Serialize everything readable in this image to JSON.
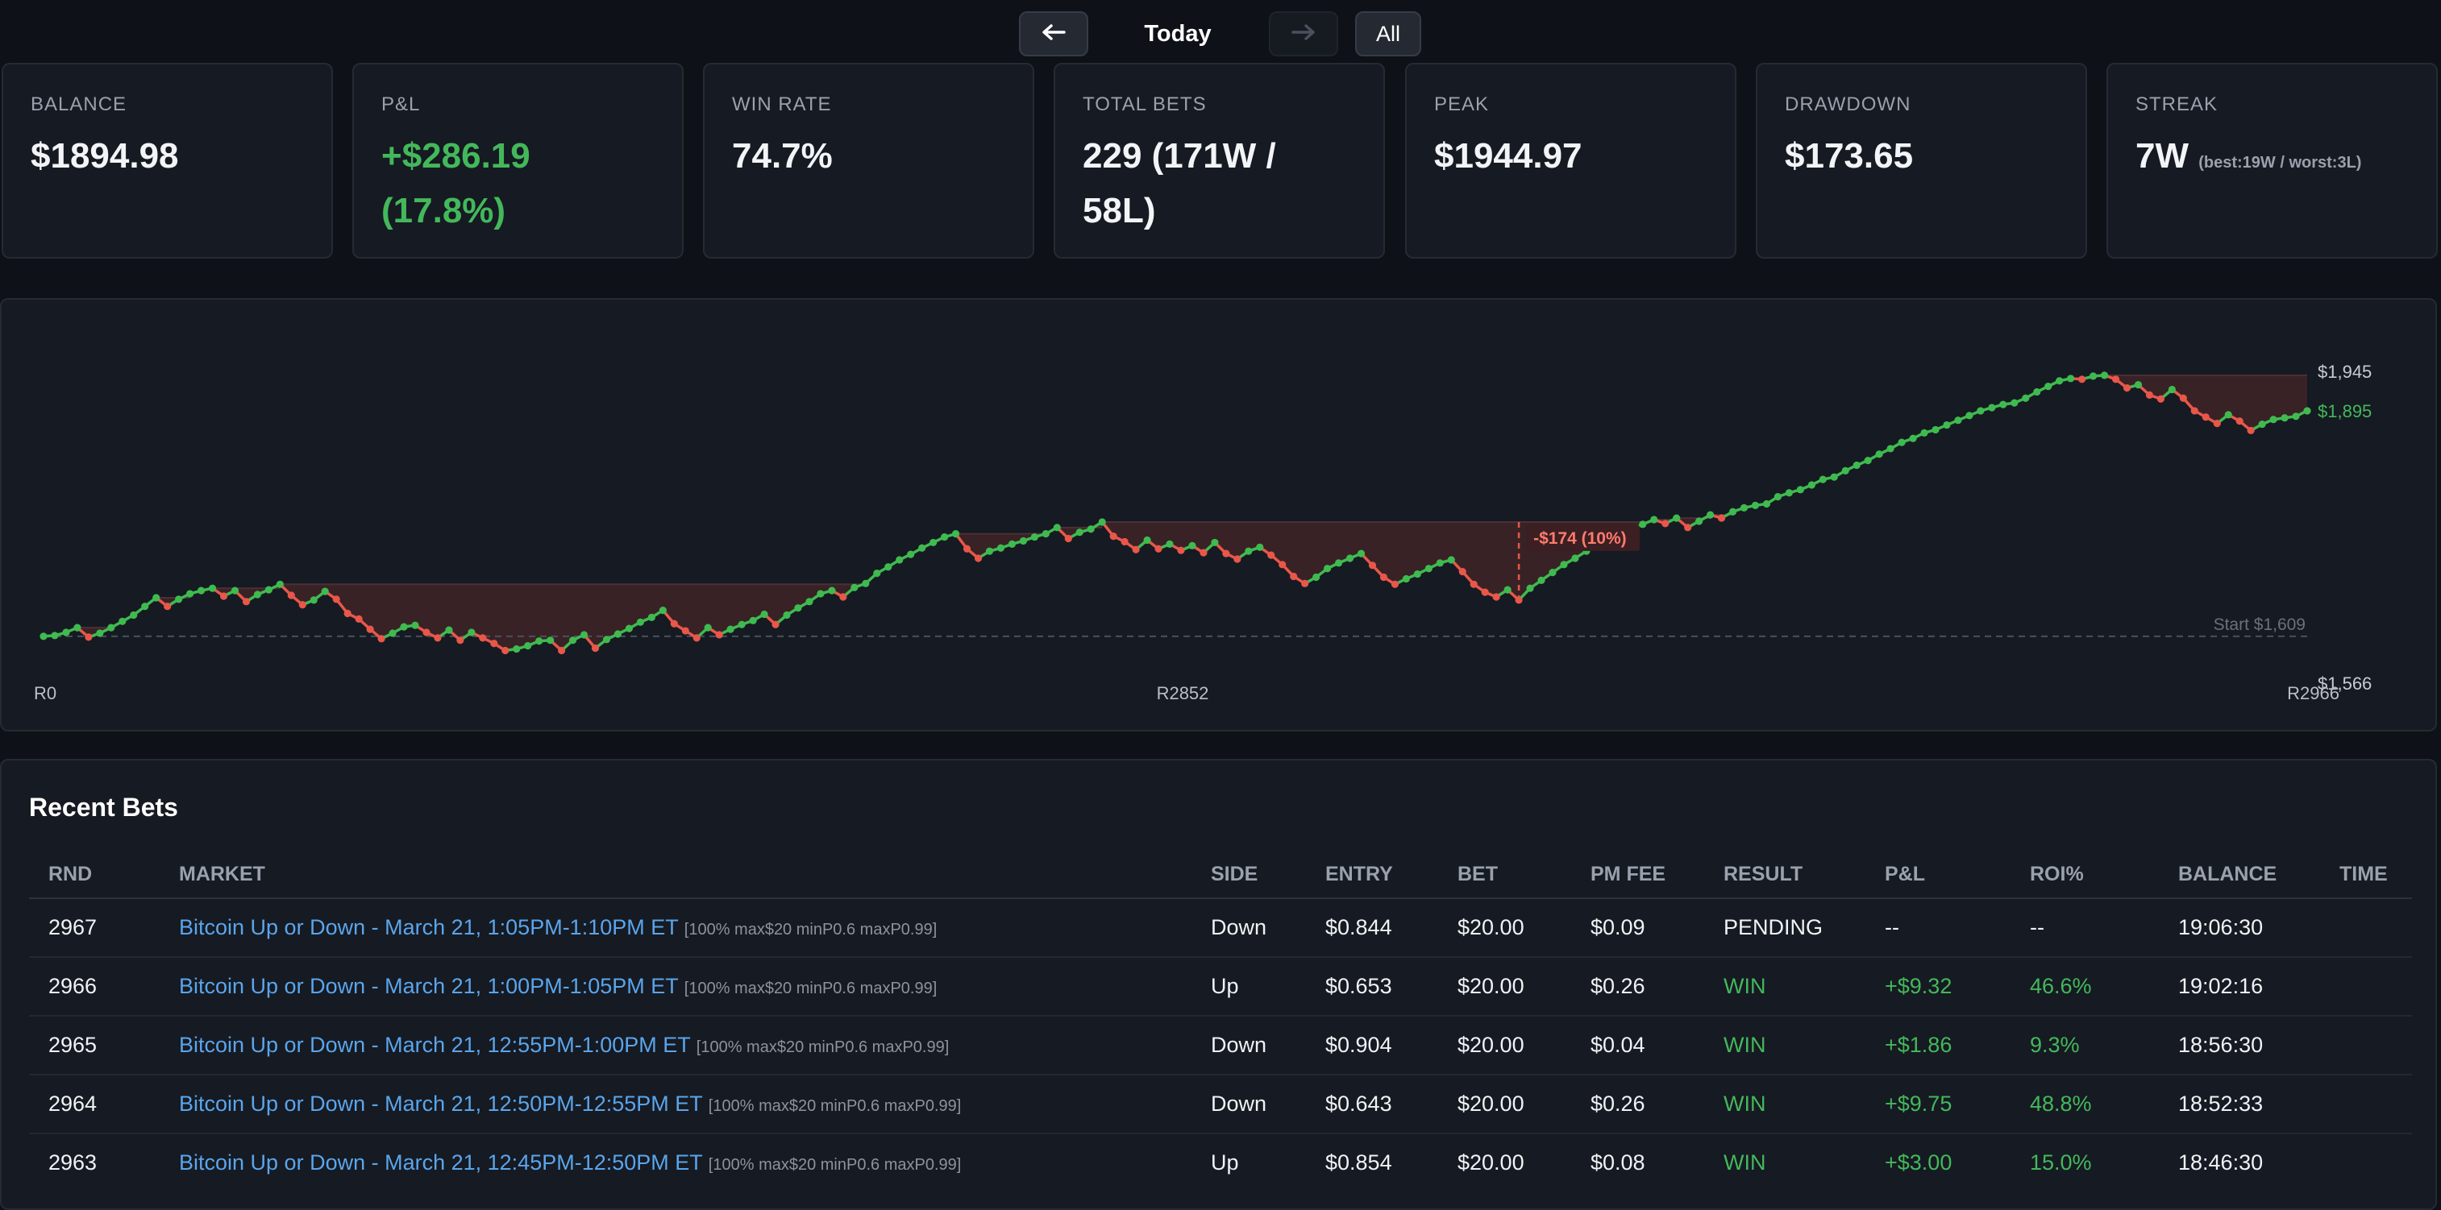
{
  "nav": {
    "prev_icon": "arrow-left-icon",
    "title": "Today",
    "next_icon": "arrow-right-icon",
    "all_label": "All"
  },
  "stats": [
    {
      "label": "BALANCE",
      "value": "$1894.98",
      "color": "#f2f4f7"
    },
    {
      "label": "P&L",
      "value": "+$286.19 (17.8%)",
      "color": "#43b85b"
    },
    {
      "label": "WIN RATE",
      "value": "74.7%",
      "color": "#f2f4f7"
    },
    {
      "label": "TOTAL BETS",
      "value": "229 (171W / 58L)",
      "color": "#f2f4f7"
    },
    {
      "label": "PEAK",
      "value": "$1944.97",
      "color": "#f2f4f7"
    },
    {
      "label": "DRAWDOWN",
      "value": "$173.65",
      "color": "#f2f4f7"
    },
    {
      "label": "STREAK",
      "value": "7W",
      "sub": "(best:19W / worst:3L)",
      "color": "#f2f4f7"
    }
  ],
  "chart_data": {
    "type": "line",
    "x_tick_labels": [
      "R0",
      "R2852",
      "R2966"
    ],
    "y_tick_labels": [
      "$1,945",
      "$1,895",
      "$1,566"
    ],
    "start_label": "Start $1,609",
    "start_value": 1609,
    "peak": 1945,
    "current": 1895,
    "ylim": [
      1566,
      1945
    ],
    "max_drawdown_label": "-$174 (10%)",
    "colors": {
      "up": "#3fba50",
      "down": "#e8574a",
      "drawdown_fill": "#3a2326"
    },
    "values": [
      1609,
      1610,
      1614,
      1620,
      1608,
      1613,
      1620,
      1628,
      1636,
      1647,
      1658,
      1647,
      1656,
      1663,
      1667,
      1670,
      1660,
      1667,
      1653,
      1662,
      1668,
      1675,
      1661,
      1649,
      1655,
      1666,
      1656,
      1638,
      1631,
      1618,
      1606,
      1613,
      1621,
      1623,
      1614,
      1607,
      1617,
      1604,
      1614,
      1607,
      1600,
      1591,
      1593,
      1597,
      1603,
      1604,
      1591,
      1604,
      1611,
      1594,
      1605,
      1612,
      1619,
      1627,
      1633,
      1642,
      1625,
      1616,
      1607,
      1620,
      1611,
      1618,
      1624,
      1629,
      1637,
      1624,
      1636,
      1645,
      1653,
      1663,
      1667,
      1659,
      1671,
      1676,
      1689,
      1697,
      1706,
      1713,
      1721,
      1728,
      1735,
      1739,
      1720,
      1708,
      1717,
      1721,
      1726,
      1730,
      1735,
      1739,
      1747,
      1733,
      1741,
      1745,
      1754,
      1736,
      1729,
      1719,
      1731,
      1720,
      1726,
      1718,
      1724,
      1715,
      1728,
      1714,
      1707,
      1717,
      1722,
      1712,
      1700,
      1685,
      1676,
      1684,
      1695,
      1702,
      1708,
      1714,
      1699,
      1684,
      1675,
      1682,
      1688,
      1695,
      1702,
      1706,
      1691,
      1675,
      1665,
      1659,
      1668,
      1655,
      1670,
      1680,
      1690,
      1700,
      1708,
      1717,
      1725,
      1733,
      1739,
      1744,
      1751,
      1757,
      1752,
      1759,
      1747,
      1755,
      1763,
      1759,
      1767,
      1772,
      1775,
      1777,
      1786,
      1791,
      1795,
      1801,
      1808,
      1811,
      1819,
      1826,
      1832,
      1840,
      1847,
      1855,
      1860,
      1867,
      1871,
      1877,
      1883,
      1889,
      1895,
      1899,
      1903,
      1905,
      1911,
      1919,
      1926,
      1933,
      1936,
      1935,
      1939,
      1940,
      1935,
      1924,
      1928,
      1915,
      1910,
      1922,
      1911,
      1895,
      1887,
      1879,
      1890,
      1882,
      1870,
      1878,
      1884,
      1886,
      1888,
      1895
    ]
  },
  "bets": {
    "title": "Recent Bets",
    "columns": [
      "RND",
      "MARKET",
      "SIDE",
      "ENTRY",
      "BET",
      "PM FEE",
      "RESULT",
      "P&L",
      "ROI%",
      "BALANCE",
      "TIME"
    ],
    "rows": [
      {
        "rnd": "2967",
        "market": "Bitcoin Up or Down - March 21, 1:05PM-1:10PM ET",
        "tag": "[100% max$20 minP0.6 maxP0.99]",
        "side": "Down",
        "entry": "$0.844",
        "bet": "$20.00",
        "fee": "$0.09",
        "result": "PENDING",
        "pl": "--",
        "roi": "--",
        "time": "19:06:30",
        "status": "pending"
      },
      {
        "rnd": "2966",
        "market": "Bitcoin Up or Down - March 21, 1:00PM-1:05PM ET",
        "tag": "[100% max$20 minP0.6 maxP0.99]",
        "side": "Up",
        "entry": "$0.653",
        "bet": "$20.00",
        "fee": "$0.26",
        "result": "WIN",
        "pl": "+$9.32",
        "roi": "46.6%",
        "time": "19:02:16",
        "status": "win"
      },
      {
        "rnd": "2965",
        "market": "Bitcoin Up or Down - March 21, 12:55PM-1:00PM ET",
        "tag": "[100% max$20 minP0.6 maxP0.99]",
        "side": "Down",
        "entry": "$0.904",
        "bet": "$20.00",
        "fee": "$0.04",
        "result": "WIN",
        "pl": "+$1.86",
        "roi": "9.3%",
        "time": "18:56:30",
        "status": "win"
      },
      {
        "rnd": "2964",
        "market": "Bitcoin Up or Down - March 21, 12:50PM-12:55PM ET",
        "tag": "[100% max$20 minP0.6 maxP0.99]",
        "side": "Down",
        "entry": "$0.643",
        "bet": "$20.00",
        "fee": "$0.26",
        "result": "WIN",
        "pl": "+$9.75",
        "roi": "48.8%",
        "time": "18:52:33",
        "status": "win"
      },
      {
        "rnd": "2963",
        "market": "Bitcoin Up or Down - March 21, 12:45PM-12:50PM ET",
        "tag": "[100% max$20 minP0.6 maxP0.99]",
        "side": "Up",
        "entry": "$0.854",
        "bet": "$20.00",
        "fee": "$0.08",
        "result": "WIN",
        "pl": "+$3.00",
        "roi": "15.0%",
        "time": "18:46:30",
        "status": "win"
      }
    ]
  }
}
